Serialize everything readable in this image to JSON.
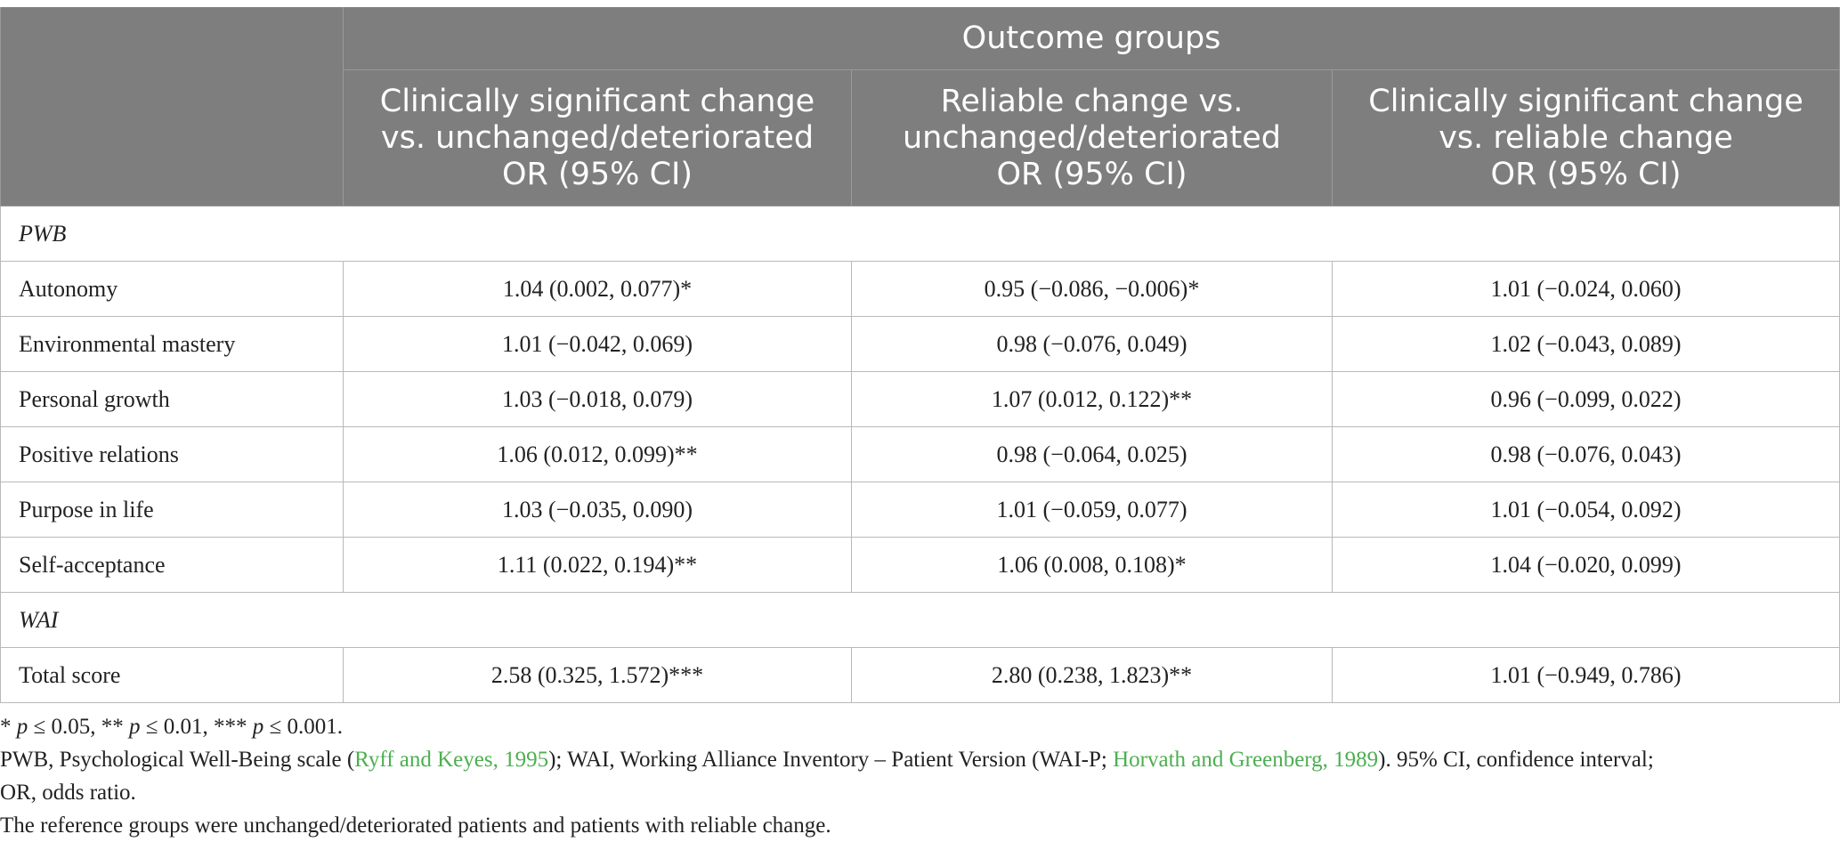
{
  "table": {
    "header_group": "Outcome groups",
    "columns": [
      [
        "Clinically significant change",
        "vs. unchanged/deteriorated",
        "OR (95% CI)"
      ],
      [
        "Reliable change vs.",
        "unchanged/deteriorated",
        "OR (95% CI)"
      ],
      [
        "Clinically significant change",
        "vs. reliable change",
        "OR (95% CI)"
      ]
    ],
    "sections": [
      {
        "title": "PWB",
        "rows": [
          {
            "label": "Autonomy",
            "values": [
              "1.04 (0.002, 0.077)*",
              "0.95 (−0.086, −0.006)*",
              "1.01 (−0.024, 0.060)"
            ]
          },
          {
            "label": "Environmental mastery",
            "values": [
              "1.01 (−0.042, 0.069)",
              "0.98 (−0.076, 0.049)",
              "1.02 (−0.043, 0.089)"
            ]
          },
          {
            "label": "Personal growth",
            "values": [
              "1.03 (−0.018, 0.079)",
              "1.07 (0.012, 0.122)**",
              "0.96 (−0.099, 0.022)"
            ]
          },
          {
            "label": "Positive relations",
            "values": [
              "1.06 (0.012, 0.099)**",
              "0.98 (−0.064, 0.025)",
              "0.98 (−0.076, 0.043)"
            ]
          },
          {
            "label": "Purpose in life",
            "values": [
              "1.03 (−0.035, 0.090)",
              "1.01 (−0.059, 0.077)",
              "1.01 (−0.054, 0.092)"
            ]
          },
          {
            "label": "Self-acceptance",
            "values": [
              "1.11 (0.022, 0.194)**",
              "1.06 (0.008, 0.108)*",
              "1.04 (−0.020, 0.099)"
            ]
          }
        ]
      },
      {
        "title": "WAI",
        "rows": [
          {
            "label": "Total score",
            "values": [
              "2.58 (0.325, 1.572)***",
              "2.80 (0.238, 1.823)**",
              "1.01 (−0.949, 0.786)"
            ]
          }
        ]
      }
    ]
  },
  "notes": {
    "sig": {
      "s1": "* ",
      "p1": "p",
      "t1": " ≤ 0.05, ** ",
      "p2": "p",
      "t2": " ≤ 0.01, *** ",
      "p3": "p",
      "t3": " ≤ 0.001."
    },
    "abbrev": {
      "a1": "PWB, Psychological Well-Being scale (",
      "ref1": "Ryff and Keyes, 1995",
      "a2": "); WAI, Working Alliance Inventory – Patient Version (WAI-P; ",
      "ref2": "Horvath and Greenberg, 1989",
      "a3": "). 95% CI, confidence interval;",
      "a4": "OR, odds ratio."
    },
    "reference": "The reference groups were unchanged/deteriorated patients and patients with reliable change.",
    "link_color": "#4caf50",
    "header_color": "#7d7e7d"
  }
}
